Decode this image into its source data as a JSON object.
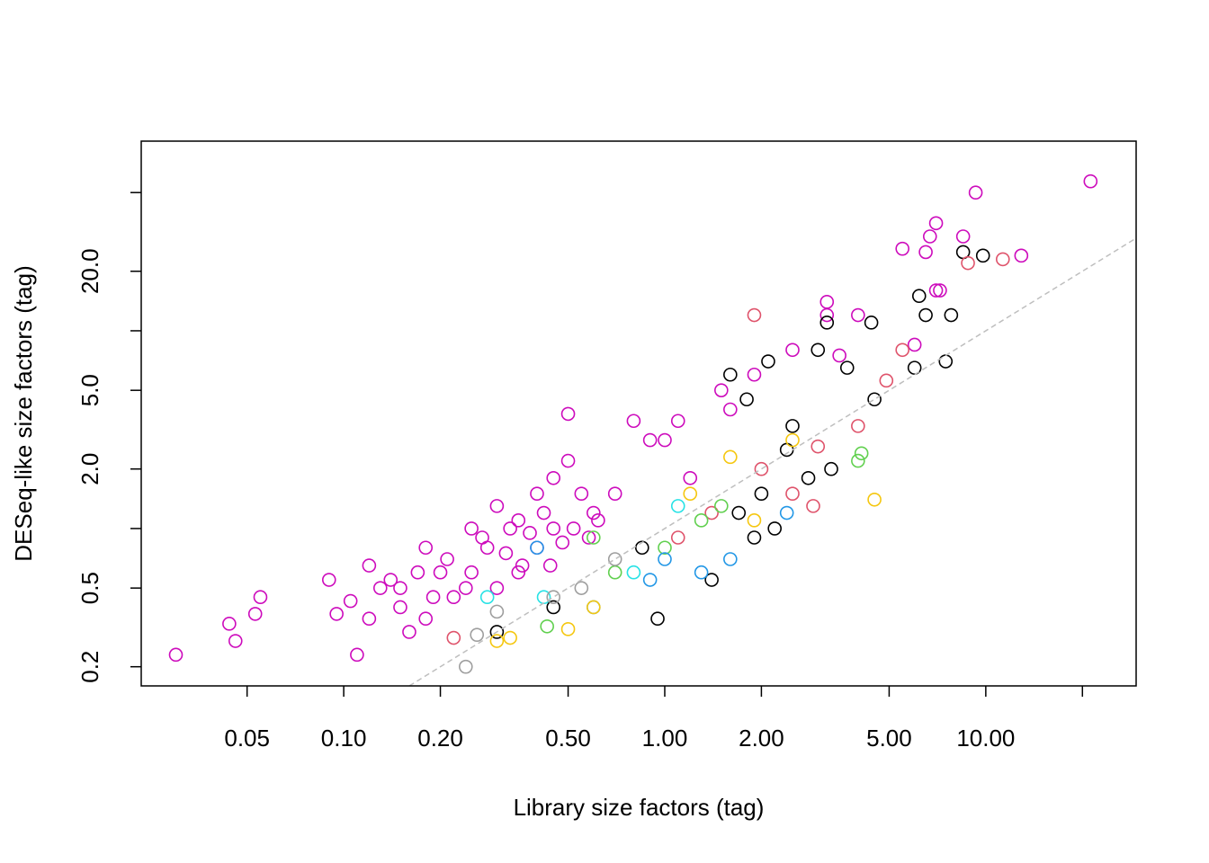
{
  "chart_data": {
    "type": "scatter",
    "xlabel": "Library size factors (tag)",
    "ylabel": "DESeq-like size factors (tag)",
    "xlog": true,
    "ylog": true,
    "xlim": [
      0.0234,
      29.4
    ],
    "ylim": [
      0.16,
      91
    ],
    "xticks": [
      0.05,
      {
        "value": 0.1,
        "label": "0.10"
      },
      {
        "value": 0.2,
        "label": "0.20"
      },
      {
        "value": 0.5,
        "label": "0.50"
      },
      {
        "value": 1,
        "label": "1.00"
      },
      {
        "value": 2,
        "label": "2.00"
      },
      {
        "value": 5,
        "label": "5.00"
      },
      {
        "value": 10,
        "label": "10.00"
      }
    ],
    "xticks_unlabeled": [
      20
    ],
    "yticks": [
      0.2,
      0.5,
      {
        "value": 2,
        "label": "2.0"
      },
      {
        "value": 5,
        "label": "5.0"
      },
      {
        "value": 20,
        "label": "20.0"
      }
    ],
    "yticks_unlabeled": [
      1,
      10,
      50
    ],
    "identity_line": true,
    "identity_line_color": "#bebebe",
    "series": [
      {
        "color": "#CD0BBC",
        "x": [
          0.03,
          0.044,
          0.046,
          0.053,
          0.055,
          0.09,
          0.095,
          0.105,
          0.11,
          0.12,
          0.12,
          0.15,
          0.18,
          0.2,
          0.25,
          0.3,
          0.35,
          0.4,
          0.45,
          0.5,
          0.5,
          0.55,
          0.6,
          0.35,
          0.28,
          0.22,
          0.18,
          0.3,
          0.4,
          0.45,
          0.25,
          0.15,
          0.8,
          0.9,
          1.0,
          1.1,
          1.5,
          1.6,
          1.2,
          0.7,
          3.2,
          3.2,
          3.5,
          4.0,
          5.5,
          6.0,
          6.5,
          6.7,
          7.0,
          7.0,
          7.2,
          8.5,
          9.3,
          12.9,
          21.2,
          1.9,
          2.5,
          0.13,
          0.14,
          0.17,
          0.21,
          0.27,
          0.32,
          0.38,
          0.42,
          0.48,
          0.52,
          0.58,
          0.62,
          0.33,
          0.36,
          0.24,
          0.19,
          0.16,
          0.44
        ],
        "values": [
          0.23,
          0.33,
          0.27,
          0.37,
          0.45,
          0.55,
          0.37,
          0.43,
          0.23,
          0.35,
          0.65,
          0.5,
          0.8,
          0.6,
          1.0,
          1.3,
          1.1,
          1.5,
          1.8,
          3.8,
          2.2,
          1.5,
          1.2,
          0.6,
          0.8,
          0.45,
          0.35,
          0.5,
          0.8,
          1.0,
          0.6,
          0.4,
          3.5,
          2.8,
          2.8,
          3.5,
          5.0,
          4.0,
          1.8,
          1.5,
          14,
          12,
          7.5,
          12,
          26,
          8.5,
          25,
          30,
          35,
          16,
          16,
          30,
          50,
          24,
          57,
          6,
          8,
          0.5,
          0.55,
          0.6,
          0.7,
          0.9,
          0.75,
          0.95,
          1.2,
          0.85,
          1.0,
          0.9,
          1.1,
          1.0,
          0.65,
          0.5,
          0.45,
          0.3,
          0.65
        ]
      },
      {
        "color": "#000000",
        "x": [
          0.3,
          0.45,
          0.85,
          0.95,
          1.4,
          1.6,
          1.8,
          2.1,
          2.5,
          3.2,
          3.0,
          3.7,
          4.4,
          4.5,
          6.0,
          6.2,
          6.5,
          7.8,
          7.5,
          8.5,
          9.8,
          2.0,
          2.2,
          2.8,
          3.3,
          1.9,
          2.4,
          1.7
        ],
        "values": [
          0.3,
          0.4,
          0.8,
          0.35,
          0.55,
          6,
          4.5,
          7,
          3.3,
          11,
          8,
          6.5,
          11,
          4.5,
          6.5,
          15,
          12,
          12,
          7,
          25,
          24,
          1.5,
          1.0,
          1.8,
          2.0,
          0.9,
          2.5,
          1.2
        ]
      },
      {
        "color": "#DF536B",
        "x": [
          1.9,
          5.5,
          8.8,
          11.3,
          4.0,
          2.5,
          2.0,
          1.4,
          3.0,
          0.22,
          1.1,
          2.9,
          4.9
        ],
        "values": [
          12,
          8,
          22,
          23,
          3.3,
          1.5,
          2.0,
          1.2,
          2.6,
          0.28,
          0.9,
          1.3,
          5.6
        ]
      },
      {
        "color": "#61D04F",
        "x": [
          4.1,
          4.0,
          1.0,
          0.7,
          1.3,
          0.43,
          0.6,
          1.5
        ],
        "values": [
          2.4,
          2.2,
          0.8,
          0.6,
          1.1,
          0.32,
          0.9,
          1.3
        ]
      },
      {
        "color": "#2297E6",
        "x": [
          1.0,
          0.9,
          1.3,
          0.6,
          0.4,
          1.6,
          2.4
        ],
        "values": [
          0.7,
          0.55,
          0.6,
          0.4,
          0.8,
          0.7,
          1.2
        ]
      },
      {
        "color": "#28E2E5",
        "x": [
          0.42,
          0.28,
          0.8,
          1.1
        ],
        "values": [
          0.45,
          0.45,
          0.6,
          1.3
        ]
      },
      {
        "color": "#F5C710",
        "x": [
          0.3,
          0.33,
          0.5,
          0.6,
          1.6,
          2.5,
          4.5,
          1.2,
          1.9
        ],
        "values": [
          0.27,
          0.28,
          0.31,
          0.4,
          2.3,
          2.8,
          1.4,
          1.5,
          1.1
        ]
      },
      {
        "color": "#9E9E9E",
        "x": [
          0.24,
          0.26,
          0.45,
          0.55,
          0.7,
          0.3
        ],
        "values": [
          0.2,
          0.29,
          0.45,
          0.5,
          0.7,
          0.38
        ]
      }
    ]
  }
}
